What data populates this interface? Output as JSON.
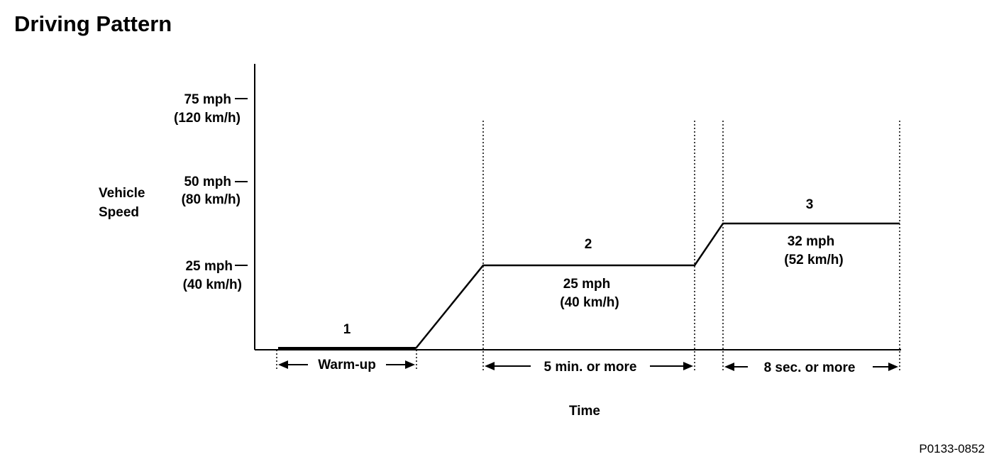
{
  "title": "Driving Pattern",
  "y_axis_label_line1": "Vehicle",
  "y_axis_label_line2": "Speed",
  "x_axis_label": "Time",
  "y_ticks": [
    {
      "mph": "75 mph",
      "kmh": "(120 km/h)"
    },
    {
      "mph": "50 mph",
      "kmh": "(80 km/h)"
    },
    {
      "mph": "25 mph",
      "kmh": "(40 km/h)"
    }
  ],
  "phases": [
    {
      "number": "1",
      "duration": "Warm-up"
    },
    {
      "number": "2",
      "speed_mph": "25 mph",
      "speed_kmh": "(40 km/h)",
      "duration": "5 min. or more"
    },
    {
      "number": "3",
      "speed_mph": "32 mph",
      "speed_kmh": "(52 km/h)",
      "duration": "8 sec. or more"
    }
  ],
  "figure_code": "P0133-0852"
}
